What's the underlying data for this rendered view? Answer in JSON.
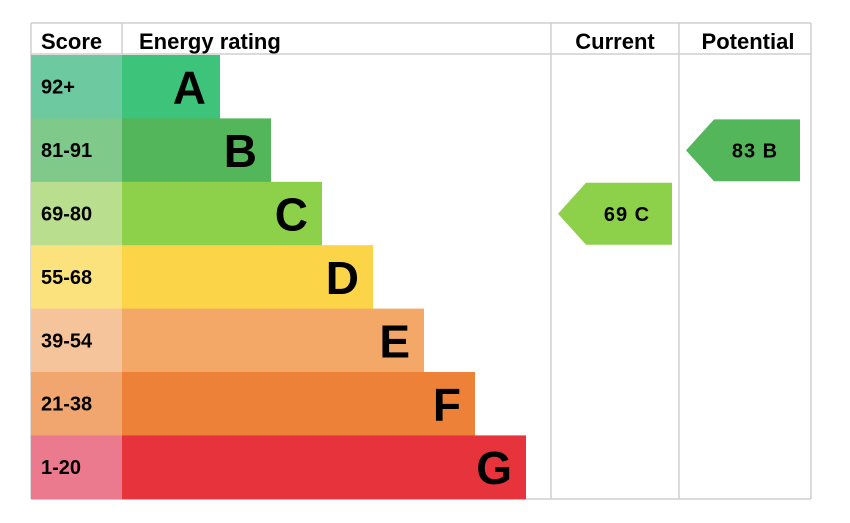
{
  "chart_data": {
    "type": "bar",
    "headers": {
      "score": "Score",
      "rating": "Energy rating",
      "current": "Current",
      "potential": "Potential"
    },
    "bands": [
      {
        "letter": "A",
        "range": "92+",
        "bar_color": "#3ec47a",
        "score_color": "#6cc9a0"
      },
      {
        "letter": "B",
        "range": "81-91",
        "bar_color": "#54b65a",
        "score_color": "#7fc98a"
      },
      {
        "letter": "C",
        "range": "69-80",
        "bar_color": "#8dd04a",
        "score_color": "#b8de8e"
      },
      {
        "letter": "D",
        "range": "55-68",
        "bar_color": "#fcd448",
        "score_color": "#fbe27c"
      },
      {
        "letter": "E",
        "range": "39-54",
        "bar_color": "#f4a868",
        "score_color": "#f5c49a"
      },
      {
        "letter": "F",
        "range": "21-38",
        "bar_color": "#ee8138",
        "score_color": "#f1a670"
      },
      {
        "letter": "G",
        "range": "1-20",
        "bar_color": "#e7343c",
        "score_color": "#ec7a8e"
      }
    ],
    "current": {
      "value": 69,
      "band": "C",
      "label": "69 C",
      "color": "#8dd04a"
    },
    "potential": {
      "value": 83,
      "band": "B",
      "label": "83 B",
      "color": "#54b65a"
    }
  }
}
